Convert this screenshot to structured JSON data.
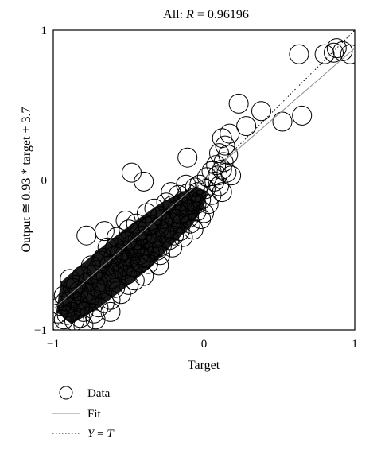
{
  "chart_data": {
    "type": "scatter",
    "title": "All: R = 0.96196",
    "title_prefix": "All: ",
    "title_var": "R",
    "title_suffix": " = 0.96196",
    "xlabel": "Target",
    "ylabel": "Output ≅ 0.93 * target + 3.7",
    "xlim": [
      -1,
      1
    ],
    "ylim": [
      -1,
      1
    ],
    "x_ticks": [
      -1,
      0,
      1
    ],
    "y_ticks": [
      -1,
      0,
      1
    ],
    "x_tick_labels": [
      "−1",
      "0",
      "1"
    ],
    "y_tick_labels": [
      "−1",
      "0",
      "1"
    ],
    "grid": false,
    "legend_placement": "below",
    "legend": [
      {
        "label": "Data",
        "style": "circle-marker"
      },
      {
        "label": "Fit",
        "style": "solid-gray-line"
      },
      {
        "label": "Y = T",
        "style": "dotted-line",
        "label_var1": "Y",
        "label_mid": " = ",
        "label_var2": "T"
      }
    ],
    "fit": {
      "slope": 0.93,
      "color": "#888888"
    },
    "identity_line": {
      "from": [
        -1,
        -1
      ],
      "to": [
        1,
        1
      ]
    },
    "series": [
      {
        "name": "Data",
        "marker": "circle",
        "points": [
          [
            0.88,
            0.88
          ],
          [
            0.92,
            0.86
          ],
          [
            0.86,
            0.85
          ],
          [
            0.8,
            0.84
          ],
          [
            0.97,
            0.84
          ],
          [
            0.63,
            0.84
          ],
          [
            0.23,
            0.51
          ],
          [
            0.38,
            0.46
          ],
          [
            0.65,
            0.43
          ],
          [
            0.52,
            0.39
          ],
          [
            0.28,
            0.36
          ],
          [
            0.17,
            0.31
          ],
          [
            0.12,
            0.28
          ],
          [
            0.14,
            0.23
          ],
          [
            0.1,
            0.18
          ],
          [
            0.16,
            0.17
          ],
          [
            0.13,
            0.12
          ],
          [
            0.08,
            0.1
          ],
          [
            0.12,
            0.07
          ],
          [
            0.15,
            0.05
          ],
          [
            0.09,
            0.03
          ],
          [
            0.18,
            0.03
          ],
          [
            0.05,
            0.06
          ],
          [
            -0.11,
            0.15
          ],
          [
            0.02,
            0.02
          ],
          [
            0.07,
            -0.01
          ],
          [
            -0.48,
            0.05
          ],
          [
            -0.4,
            -0.01
          ],
          [
            -0.78,
            -0.37
          ],
          [
            -0.66,
            -0.34
          ],
          [
            -0.52,
            -0.27
          ],
          [
            -0.45,
            -0.29
          ],
          [
            -0.38,
            -0.22
          ],
          [
            -0.33,
            -0.19
          ],
          [
            -0.25,
            -0.15
          ],
          [
            -0.22,
            -0.08
          ],
          [
            -0.17,
            -0.1
          ],
          [
            -0.12,
            -0.03
          ],
          [
            -0.06,
            -0.05
          ],
          [
            -0.02,
            -0.13
          ],
          [
            0.03,
            -0.16
          ],
          [
            -0.05,
            -0.21
          ],
          [
            -0.1,
            -0.25
          ],
          [
            -0.2,
            -0.37
          ],
          [
            -0.28,
            -0.44
          ],
          [
            -0.36,
            -0.48
          ],
          [
            -0.42,
            -0.55
          ],
          [
            -0.3,
            -0.57
          ],
          [
            -0.46,
            -0.67
          ],
          [
            -0.55,
            -0.76
          ],
          [
            -0.62,
            -0.8
          ],
          [
            -0.7,
            -0.85
          ],
          [
            -0.8,
            -0.88
          ],
          [
            -0.86,
            -0.94
          ],
          [
            -0.93,
            -0.93
          ],
          [
            -0.97,
            -0.89
          ],
          [
            -0.89,
            -0.66
          ],
          [
            -0.85,
            -0.7
          ],
          [
            -0.93,
            -0.77
          ],
          [
            -0.68,
            -0.54
          ],
          [
            -0.74,
            -0.63
          ],
          [
            -0.6,
            -0.51
          ],
          [
            -0.53,
            -0.47
          ],
          [
            -0.58,
            -0.38
          ],
          [
            -0.64,
            -0.45
          ],
          [
            -0.5,
            -0.33
          ],
          [
            -0.44,
            -0.4
          ],
          [
            -0.35,
            -0.3
          ],
          [
            -0.27,
            -0.26
          ],
          [
            -0.18,
            -0.2
          ],
          [
            -0.15,
            -0.29
          ],
          [
            -0.24,
            -0.32
          ],
          [
            -0.32,
            -0.39
          ],
          [
            -0.4,
            -0.46
          ],
          [
            -0.49,
            -0.52
          ],
          [
            -0.57,
            -0.59
          ],
          [
            -0.65,
            -0.64
          ],
          [
            -0.72,
            -0.71
          ],
          [
            -0.79,
            -0.75
          ],
          [
            -0.84,
            -0.81
          ],
          [
            -0.9,
            -0.85
          ],
          [
            -0.76,
            -0.79
          ],
          [
            -0.69,
            -0.73
          ],
          [
            -0.61,
            -0.66
          ],
          [
            -0.54,
            -0.6
          ],
          [
            -0.47,
            -0.58
          ],
          [
            -0.39,
            -0.52
          ],
          [
            -0.31,
            -0.47
          ],
          [
            -0.23,
            -0.4
          ],
          [
            -0.16,
            -0.34
          ],
          [
            -0.09,
            -0.29
          ],
          [
            -0.13,
            -0.18
          ],
          [
            -0.08,
            -0.14
          ],
          [
            -0.04,
            -0.08
          ],
          [
            0.01,
            -0.06
          ],
          [
            -0.19,
            -0.26
          ],
          [
            -0.26,
            -0.35
          ],
          [
            -0.34,
            -0.42
          ],
          [
            -0.41,
            -0.37
          ],
          [
            -0.48,
            -0.43
          ],
          [
            -0.56,
            -0.49
          ],
          [
            -0.63,
            -0.57
          ],
          [
            -0.71,
            -0.6
          ],
          [
            -0.77,
            -0.68
          ],
          [
            -0.83,
            -0.74
          ],
          [
            -0.88,
            -0.79
          ],
          [
            -0.95,
            -0.84
          ],
          [
            -0.91,
            -0.9
          ],
          [
            -0.82,
            -0.92
          ],
          [
            -0.73,
            -0.89
          ],
          [
            -0.66,
            -0.82
          ],
          [
            -0.59,
            -0.72
          ],
          [
            -0.51,
            -0.63
          ],
          [
            -0.43,
            -0.5
          ],
          [
            -0.37,
            -0.56
          ],
          [
            -0.29,
            -0.5
          ],
          [
            -0.21,
            -0.45
          ],
          [
            -0.14,
            -0.38
          ],
          [
            -0.07,
            -0.33
          ],
          [
            -0.11,
            -0.09
          ],
          [
            -0.03,
            -0.03
          ],
          [
            -0.14,
            -0.14
          ],
          [
            -0.21,
            -0.17
          ],
          [
            -0.29,
            -0.24
          ],
          [
            -0.37,
            -0.31
          ],
          [
            -0.43,
            -0.34
          ],
          [
            -0.51,
            -0.41
          ],
          [
            -0.59,
            -0.45
          ],
          [
            -0.67,
            -0.52
          ],
          [
            -0.75,
            -0.57
          ],
          [
            -0.81,
            -0.64
          ],
          [
            -0.87,
            -0.72
          ],
          [
            -0.92,
            -0.81
          ],
          [
            -0.8,
            -0.97
          ],
          [
            -0.72,
            -0.93
          ],
          [
            -0.5,
            -0.7
          ],
          [
            -0.4,
            -0.64
          ],
          [
            -0.62,
            -0.88
          ],
          [
            -0.55,
            -0.55
          ],
          [
            -0.46,
            -0.47
          ],
          [
            -0.38,
            -0.39
          ],
          [
            -0.3,
            -0.33
          ],
          [
            -0.22,
            -0.28
          ],
          [
            -0.16,
            -0.23
          ],
          [
            -0.1,
            -0.2
          ],
          [
            -0.05,
            -0.16
          ],
          [
            -0.68,
            -0.68
          ],
          [
            -0.75,
            -0.76
          ],
          [
            -0.82,
            -0.84
          ],
          [
            -0.88,
            -0.88
          ],
          [
            -0.6,
            -0.62
          ],
          [
            -0.53,
            -0.53
          ],
          [
            -0.45,
            -0.45
          ],
          [
            0.0,
            -0.22
          ],
          [
            0.05,
            -0.1
          ],
          [
            -0.02,
            -0.26
          ],
          [
            0.1,
            -0.04
          ],
          [
            0.12,
            -0.08
          ]
        ]
      }
    ]
  }
}
